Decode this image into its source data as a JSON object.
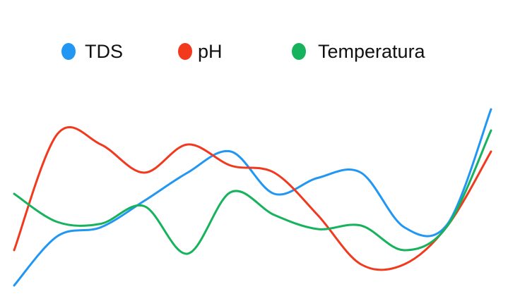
{
  "chart_data": {
    "type": "line",
    "categories": [
      null,
      null,
      null,
      null,
      null,
      null,
      null,
      null,
      null,
      null,
      null,
      null
    ],
    "series": [
      {
        "name": "TDS",
        "color": "#2196f3",
        "values": [
          0,
          28,
          33,
          48,
          64,
          76,
          52,
          61,
          64,
          33,
          35,
          100
        ]
      },
      {
        "name": "pH",
        "color": "#f2391e",
        "values": [
          20,
          86,
          80,
          64,
          80,
          68,
          64,
          40,
          12,
          12,
          34,
          76
        ]
      },
      {
        "name": "Temperatura",
        "color": "#16b35c",
        "values": [
          52,
          36,
          35,
          45,
          18,
          53,
          40,
          32,
          34,
          20,
          34,
          88
        ]
      }
    ],
    "ylim": [
      0,
      100
    ],
    "legend": "top"
  }
}
